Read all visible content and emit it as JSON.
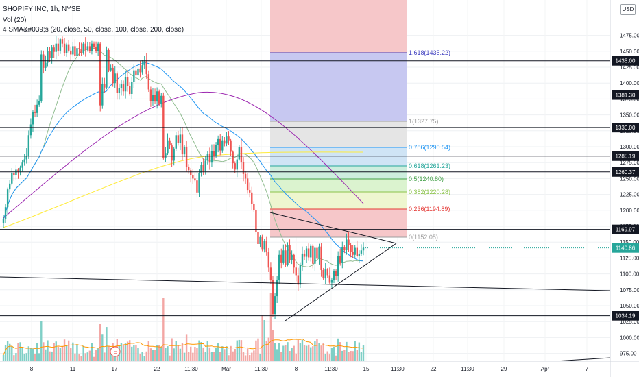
{
  "header": {
    "title": "SHOPIFY INC, 1h, NYSE",
    "volume": "Vol (20)",
    "sma": "4 SMA&#039;s (20, close, 50, close, 100, close, 200, close)",
    "currency": "USD"
  },
  "chart_data": {
    "type": "candlestick",
    "symbol": "SHOPIFY INC",
    "interval": "1h",
    "exchange": "NYSE",
    "y_ticks": [
      975,
      1000,
      1025,
      1050,
      1075,
      1100,
      1125,
      1150,
      1175,
      1200,
      1225,
      1250,
      1275,
      1300,
      1325,
      1350,
      1375,
      1400,
      1425,
      1450,
      1475
    ],
    "x_ticks": [
      "8",
      "11",
      "17",
      "22",
      "11:30",
      "Mar",
      "11:30",
      "8",
      "11:30",
      "15",
      "11:30",
      "22",
      "11:30",
      "29",
      "Apr",
      "7"
    ],
    "current_price": "1140.86",
    "levels": [
      "1435.00",
      "1381.30",
      "1330.00",
      "1285.19",
      "1260.37",
      "1169.97",
      "1034.19"
    ],
    "fibonacci": [
      {
        "label": "1.618(1435.22)",
        "color": "#3d3dbf"
      },
      {
        "label": "1(1327.75)",
        "color": "#9e9e9e"
      },
      {
        "label": "0.786(1290.54)",
        "color": "#2196f3"
      },
      {
        "label": "0.618(1261.23)",
        "color": "#26a69a"
      },
      {
        "label": "0.5(1240.80)",
        "color": "#43a047"
      },
      {
        "label": "0.382(1220.28)",
        "color": "#8bc34a"
      },
      {
        "label": "0.236(1194.89)",
        "color": "#e53935"
      },
      {
        "label": "0(1152.05)",
        "color": "#9e9e9e"
      }
    ],
    "colors": {
      "up": "#26a69a",
      "down": "#ef5350",
      "sma20": "#8fbc8f",
      "sma50": "#2196f3",
      "sma100": "#9c27b0",
      "sma200": "#ffeb3b",
      "price_tag": "#26a69a"
    },
    "candles_close": [
      1186,
      1205,
      1233,
      1242,
      1258,
      1255,
      1264,
      1261,
      1267,
      1275,
      1280,
      1286,
      1318,
      1335,
      1355,
      1353,
      1366,
      1372,
      1445,
      1424,
      1432,
      1450,
      1440,
      1456,
      1449,
      1462,
      1451,
      1469,
      1462,
      1447,
      1461,
      1451,
      1445,
      1458,
      1443,
      1455,
      1453,
      1447,
      1462,
      1452,
      1458,
      1450,
      1462,
      1457,
      1450,
      1462,
      1365,
      1399,
      1393,
      1452,
      1420,
      1424,
      1400,
      1415,
      1385,
      1392,
      1398,
      1387,
      1409,
      1395,
      1383,
      1402,
      1420,
      1412,
      1423,
      1417,
      1428,
      1435,
      1414,
      1390,
      1372,
      1381,
      1371,
      1387,
      1368,
      1380,
      1282,
      1290,
      1310,
      1302,
      1278,
      1297,
      1318,
      1306,
      1319,
      1288,
      1300,
      1268,
      1263,
      1255,
      1250,
      1247,
      1228,
      1259,
      1272,
      1262,
      1278,
      1289,
      1275,
      1293,
      1285,
      1303,
      1312,
      1294,
      1310,
      1305,
      1316,
      1310,
      1292,
      1274,
      1264,
      1280,
      1299,
      1276,
      1257,
      1250,
      1232,
      1228,
      1210,
      1200,
      1166,
      1147,
      1158,
      1139,
      1152,
      1134,
      1110,
      1090,
      1037,
      1065,
      1090,
      1130,
      1118,
      1137,
      1114,
      1145,
      1122,
      1130,
      1110,
      1098,
      1083,
      1114,
      1132,
      1127,
      1140,
      1126,
      1144,
      1116,
      1141,
      1124,
      1143,
      1106,
      1093,
      1107,
      1098,
      1086,
      1090,
      1105,
      1097,
      1128,
      1118,
      1142,
      1138,
      1154,
      1145,
      1135,
      1130,
      1141,
      1128,
      1132,
      1137,
      1140.86
    ]
  }
}
